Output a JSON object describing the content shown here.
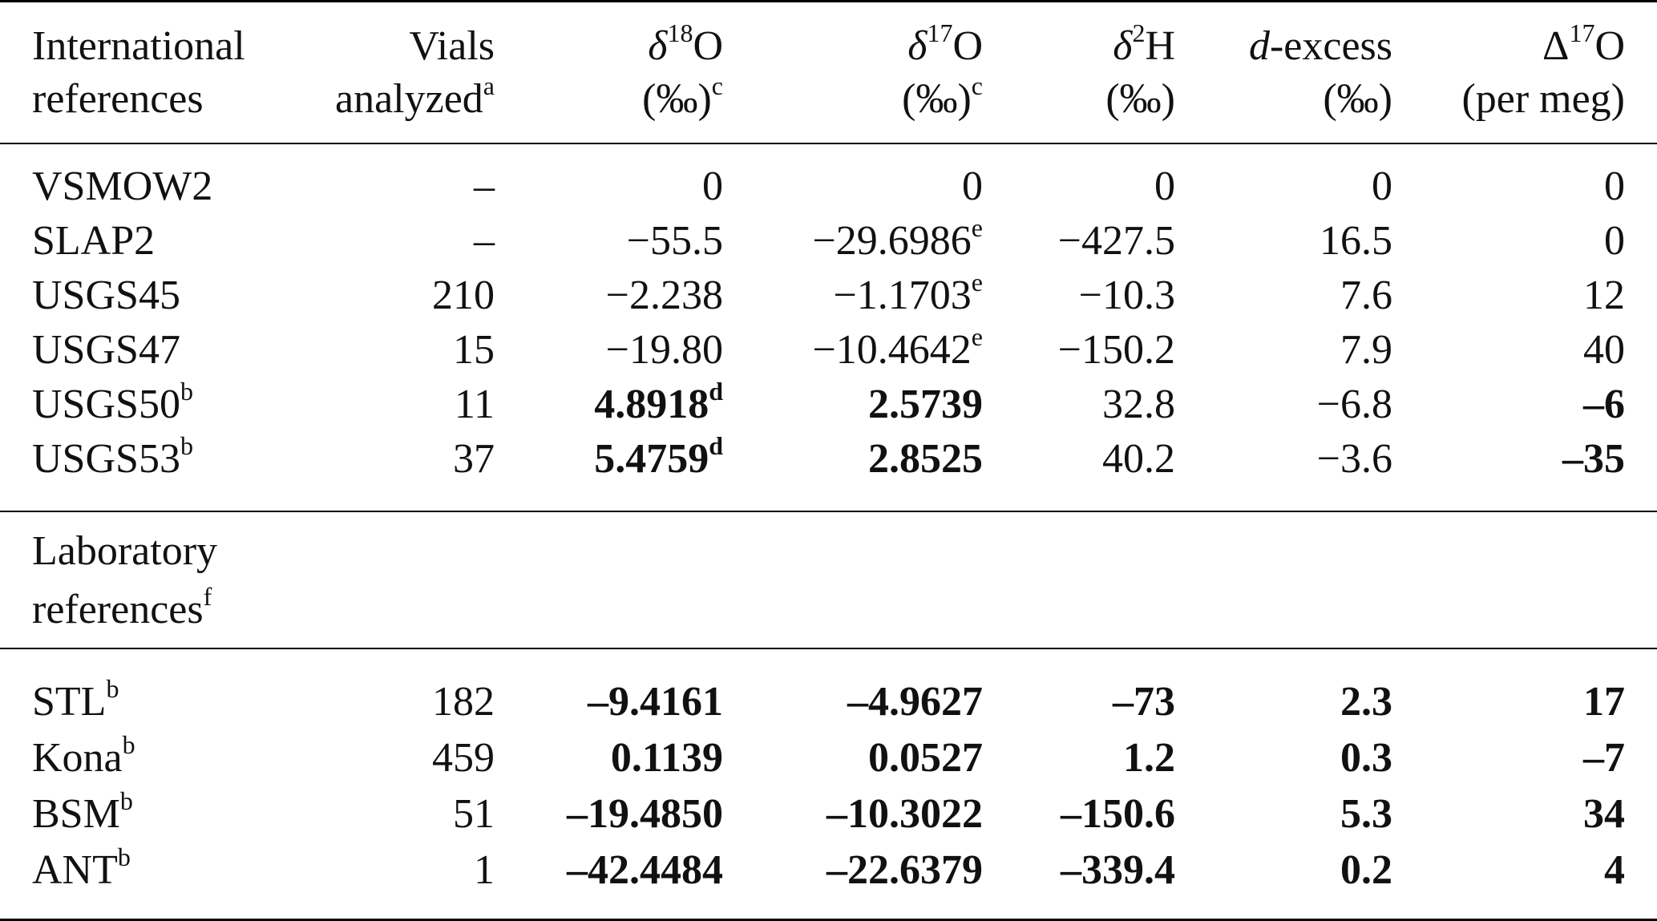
{
  "table": {
    "headers": [
      {
        "line1": "International",
        "line2": "references"
      },
      {
        "line1": "Vials",
        "line2": "analyzed",
        "line2_sup": "a"
      },
      {
        "italic_pre": "δ",
        "sup": "18",
        "post": "O",
        "line2": "(‰)",
        "line2_sup": "c"
      },
      {
        "italic_pre": "δ",
        "sup": "17",
        "post": "O",
        "line2": "(‰)",
        "line2_sup": "c"
      },
      {
        "italic_pre": "δ",
        "sup": "2",
        "post": "H",
        "line2": "(‰)"
      },
      {
        "italic_pre": "d",
        "post": "-excess",
        "line2": "(‰)"
      },
      {
        "pre": "Δ",
        "sup": "17",
        "post": "O",
        "line2": "(per meg)"
      }
    ],
    "international_rows": [
      [
        {
          "v": "VSMOW2"
        },
        {
          "v": "–"
        },
        {
          "v": "0"
        },
        {
          "v": "0"
        },
        {
          "v": "0"
        },
        {
          "v": "0"
        },
        {
          "v": "0"
        }
      ],
      [
        {
          "v": "SLAP2"
        },
        {
          "v": "–"
        },
        {
          "v": "−55.5"
        },
        {
          "v": "−29.6986",
          "sup": "e"
        },
        {
          "v": "−427.5"
        },
        {
          "v": "16.5"
        },
        {
          "v": "0"
        }
      ],
      [
        {
          "v": "USGS45"
        },
        {
          "v": "210"
        },
        {
          "v": "−2.238"
        },
        {
          "v": "−1.1703",
          "sup": "e"
        },
        {
          "v": "−10.3"
        },
        {
          "v": "7.6"
        },
        {
          "v": "12"
        }
      ],
      [
        {
          "v": "USGS47"
        },
        {
          "v": "15"
        },
        {
          "v": "−19.80"
        },
        {
          "v": "−10.4642",
          "sup": "e"
        },
        {
          "v": "−150.2"
        },
        {
          "v": "7.9"
        },
        {
          "v": "40"
        }
      ],
      [
        {
          "v": "USGS50",
          "sup": "b"
        },
        {
          "v": "11"
        },
        {
          "v": "4.8918",
          "sup": "d",
          "bold": true
        },
        {
          "v": "2.5739",
          "bold": true
        },
        {
          "v": "32.8"
        },
        {
          "v": "−6.8"
        },
        {
          "v": "–6",
          "bold": true
        }
      ],
      [
        {
          "v": "USGS53",
          "sup": "b"
        },
        {
          "v": "37"
        },
        {
          "v": "5.4759",
          "sup": "d",
          "bold": true
        },
        {
          "v": "2.8525",
          "bold": true
        },
        {
          "v": "40.2"
        },
        {
          "v": "−3.6"
        },
        {
          "v": "–35",
          "bold": true
        }
      ]
    ],
    "laboratory_header": {
      "line1": "Laboratory",
      "line2": "references",
      "line2_sup": "f"
    },
    "laboratory_rows": [
      [
        {
          "v": "STL",
          "sup": "b"
        },
        {
          "v": "182"
        },
        {
          "v": "–9.4161",
          "bold": true
        },
        {
          "v": "–4.9627",
          "bold": true
        },
        {
          "v": "–73",
          "bold": true
        },
        {
          "v": "2.3",
          "bold": true
        },
        {
          "v": "17",
          "bold": true
        }
      ],
      [
        {
          "v": "Kona",
          "sup": "b"
        },
        {
          "v": "459"
        },
        {
          "v": "0.1139",
          "bold": true
        },
        {
          "v": "0.0527",
          "bold": true
        },
        {
          "v": "1.2",
          "bold": true
        },
        {
          "v": "0.3",
          "bold": true
        },
        {
          "v": "–7",
          "bold": true
        }
      ],
      [
        {
          "v": "BSM",
          "sup": "b"
        },
        {
          "v": "51"
        },
        {
          "v": "–19.4850",
          "bold": true
        },
        {
          "v": "–10.3022",
          "bold": true
        },
        {
          "v": "–150.6",
          "bold": true
        },
        {
          "v": "5.3",
          "bold": true
        },
        {
          "v": "34",
          "bold": true
        }
      ],
      [
        {
          "v": "ANT",
          "sup": "b"
        },
        {
          "v": "1"
        },
        {
          "v": "–42.4484",
          "bold": true
        },
        {
          "v": "–22.6379",
          "bold": true
        },
        {
          "v": "–339.4",
          "bold": true
        },
        {
          "v": "0.2",
          "bold": true
        },
        {
          "v": "4",
          "bold": true
        }
      ]
    ]
  }
}
